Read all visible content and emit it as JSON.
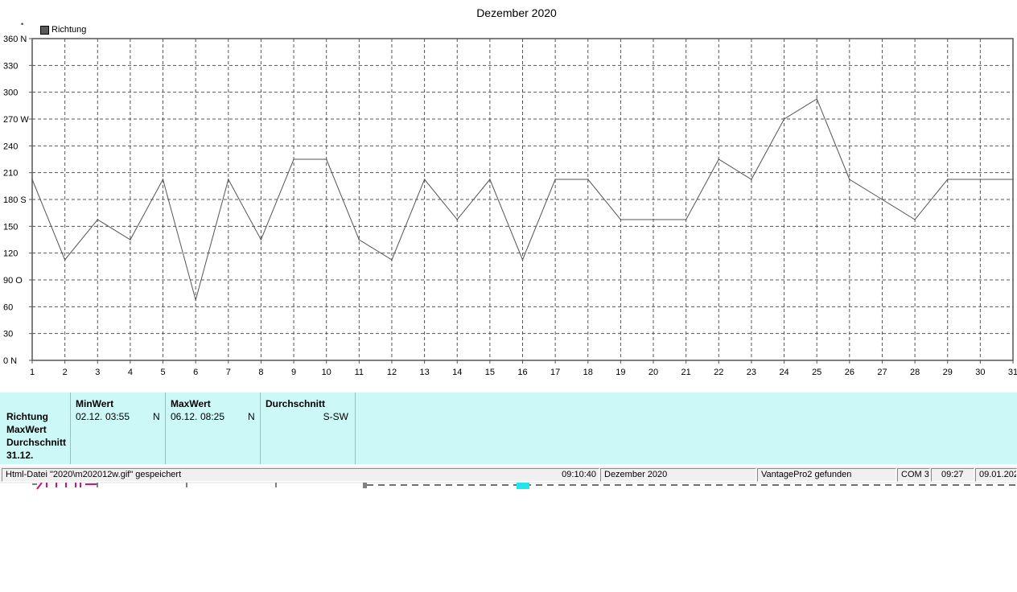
{
  "chart_data": {
    "type": "line",
    "title": "Dezember 2020",
    "legend": [
      "Richtung"
    ],
    "legend_position": "top-left",
    "grid": true,
    "x": [
      1,
      2,
      3,
      4,
      5,
      6,
      7,
      8,
      9,
      10,
      11,
      12,
      13,
      14,
      15,
      16,
      17,
      18,
      19,
      20,
      21,
      22,
      23,
      24,
      25,
      26,
      27,
      28,
      29,
      30,
      31
    ],
    "x_ticks": [
      "1",
      "2",
      "3",
      "4",
      "5",
      "6",
      "7",
      "8",
      "9",
      "10",
      "11",
      "12",
      "13",
      "14",
      "15",
      "16",
      "17",
      "18",
      "19",
      "20",
      "21",
      "22",
      "23",
      "24",
      "25",
      "26",
      "27",
      "28",
      "29",
      "30",
      "31"
    ],
    "xlim": [
      1,
      31
    ],
    "ylim": [
      0,
      360
    ],
    "y_ticks": [
      {
        "value": 360,
        "label": "360 N"
      },
      {
        "value": 330,
        "label": "330"
      },
      {
        "value": 300,
        "label": "300"
      },
      {
        "value": 270,
        "label": "270 W"
      },
      {
        "value": 240,
        "label": "240"
      },
      {
        "value": 210,
        "label": "210"
      },
      {
        "value": 180,
        "label": "180 S"
      },
      {
        "value": 150,
        "label": "150"
      },
      {
        "value": 120,
        "label": "120"
      },
      {
        "value": 90,
        "label": "90  O"
      },
      {
        "value": 60,
        "label": "60"
      },
      {
        "value": 30,
        "label": "30"
      },
      {
        "value": 0,
        "label": "0   N"
      }
    ],
    "series": [
      {
        "name": "Richtung",
        "color": "#555555",
        "values": [
          202.5,
          112.5,
          157.5,
          135,
          202.5,
          67.5,
          202.5,
          135,
          225,
          225,
          135,
          112.5,
          202.5,
          157.5,
          202.5,
          112.5,
          202.5,
          202.5,
          157.5,
          157.5,
          157.5,
          225,
          202.5,
          270,
          292.5,
          202.5,
          180,
          157.5,
          202.5,
          202.5,
          202.5
        ]
      }
    ]
  },
  "stats": {
    "row_labels": [
      "Richtung",
      "MaxWert",
      "Durchschnitt",
      "31.12."
    ],
    "min": {
      "header": "MinWert",
      "date": "02.12.",
      "time": "03:55",
      "dir": "N"
    },
    "max": {
      "header": "MaxWert",
      "date": "06.12.",
      "time": "08:25",
      "dir": "N"
    },
    "avg": {
      "header": "Durchschnitt",
      "value": "S-SW"
    }
  },
  "statusbar": {
    "message": "Html-Datei  \"2020\\m202012w.gif\"  gespeichert",
    "time1": "09:10:40",
    "month": "Dezember 2020",
    "device": "VantagePro2 gefunden",
    "port": "COM 3",
    "clock": "09:27",
    "date": "09.01.202"
  }
}
